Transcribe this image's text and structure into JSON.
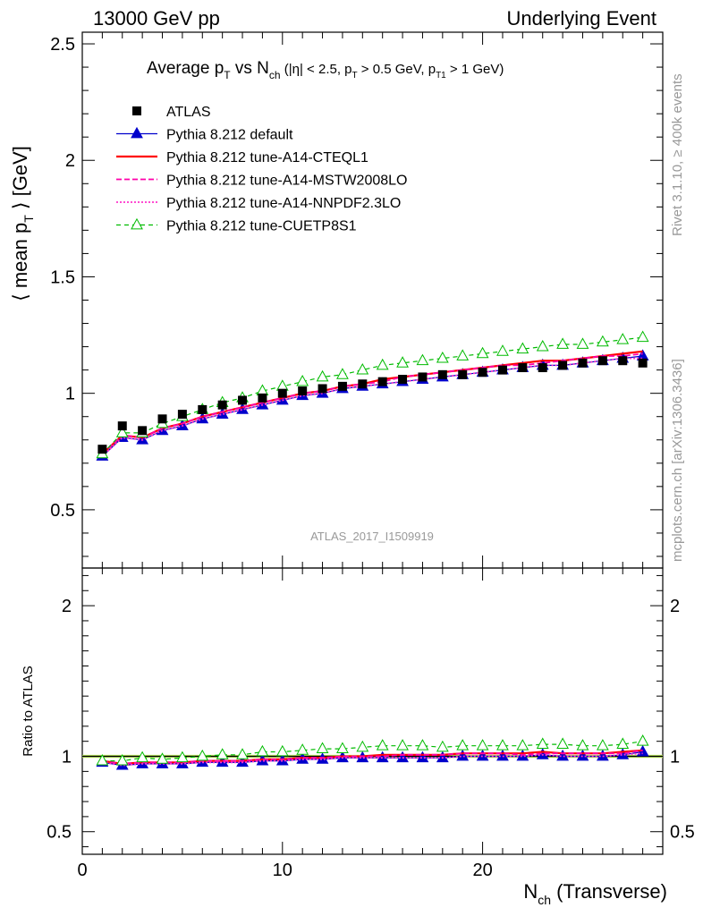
{
  "header": {
    "left": "13000 GeV pp",
    "right": "Underlying Event"
  },
  "side_labels": {
    "rivet": "Rivet 3.1.10, ≥ 400k events",
    "mcplots": "mcplots.cern.ch [arXiv:1306.3436]"
  },
  "analysis_id": "ATLAS_2017_I1509919",
  "colors": {
    "atlas": "#000000",
    "default": "#0000cc",
    "cteql1": "#ff0000",
    "mstw": "#ff00aa",
    "nnpdf": "#ff33cc",
    "cuetp8s1": "#00bb00",
    "ratio_band": "#ccff66"
  },
  "chart_data": [
    {
      "type": "line",
      "panel": "main",
      "title": {
        "main": "Average p",
        "main_sub": "T",
        "vs": " vs N",
        "vs_sub": "ch",
        "cond1": " (|η| < 2.5, p",
        "cond1_sub": "T",
        "cond2": " > 0.5 GeV, p",
        "cond2_sub": "T1",
        "cond3": " > 1 GeV)"
      },
      "ylabel": {
        "pre": "⟨ mean p",
        "sub": "T",
        "post": " ⟩ [GeV]"
      },
      "xlim": [
        0,
        29
      ],
      "ylim": [
        0.25,
        2.55
      ],
      "yticks": [
        0.5,
        1,
        1.5,
        2,
        2.5
      ],
      "ytick_labels": [
        "0.5",
        "1",
        "1.5",
        "2",
        "2.5"
      ],
      "legend_position": "top-left",
      "x": [
        1,
        2,
        3,
        4,
        5,
        6,
        7,
        8,
        9,
        10,
        11,
        12,
        13,
        14,
        15,
        16,
        17,
        18,
        19,
        20,
        21,
        22,
        23,
        24,
        25,
        26,
        27,
        28
      ],
      "series": [
        {
          "name": "ATLAS",
          "key": "atlas",
          "style": "data",
          "values": [
            0.76,
            0.86,
            0.84,
            0.89,
            0.91,
            0.93,
            0.95,
            0.97,
            0.98,
            1.0,
            1.01,
            1.02,
            1.03,
            1.04,
            1.05,
            1.06,
            1.07,
            1.08,
            1.08,
            1.09,
            1.1,
            1.11,
            1.11,
            1.12,
            1.13,
            1.14,
            1.14,
            1.13
          ]
        },
        {
          "name": "Pythia 8.212 default",
          "key": "default",
          "style": "solid-triangle",
          "values": [
            0.73,
            0.81,
            0.8,
            0.84,
            0.86,
            0.89,
            0.91,
            0.93,
            0.95,
            0.97,
            0.99,
            1.0,
            1.02,
            1.03,
            1.04,
            1.05,
            1.06,
            1.07,
            1.08,
            1.09,
            1.1,
            1.11,
            1.12,
            1.12,
            1.13,
            1.14,
            1.15,
            1.16
          ]
        },
        {
          "name": "Pythia 8.212 tune-A14-CTEQL1",
          "key": "cteql1",
          "style": "solid",
          "values": [
            0.74,
            0.82,
            0.81,
            0.85,
            0.87,
            0.9,
            0.92,
            0.94,
            0.96,
            0.98,
            1.0,
            1.01,
            1.03,
            1.04,
            1.06,
            1.07,
            1.08,
            1.09,
            1.1,
            1.11,
            1.12,
            1.13,
            1.14,
            1.14,
            1.15,
            1.16,
            1.17,
            1.18
          ]
        },
        {
          "name": "Pythia 8.212 tune-A14-MSTW2008LO",
          "key": "mstw",
          "style": "dashed",
          "values": [
            0.74,
            0.82,
            0.81,
            0.85,
            0.87,
            0.9,
            0.92,
            0.94,
            0.96,
            0.98,
            1.0,
            1.01,
            1.03,
            1.04,
            1.05,
            1.07,
            1.08,
            1.09,
            1.1,
            1.11,
            1.12,
            1.12,
            1.13,
            1.14,
            1.15,
            1.16,
            1.16,
            1.17
          ]
        },
        {
          "name": "Pythia 8.212 tune-A14-NNPDF2.3LO",
          "key": "nnpdf",
          "style": "dotted",
          "values": [
            0.73,
            0.81,
            0.8,
            0.84,
            0.86,
            0.89,
            0.91,
            0.93,
            0.95,
            0.97,
            0.99,
            1.0,
            1.02,
            1.03,
            1.04,
            1.05,
            1.06,
            1.07,
            1.08,
            1.09,
            1.1,
            1.11,
            1.12,
            1.12,
            1.13,
            1.14,
            1.15,
            1.15
          ]
        },
        {
          "name": "Pythia 8.212 tune-CUETP8S1",
          "key": "cuetp8s1",
          "style": "dashed-open-triangle",
          "values": [
            0.74,
            0.83,
            0.83,
            0.87,
            0.9,
            0.93,
            0.96,
            0.98,
            1.01,
            1.03,
            1.05,
            1.07,
            1.08,
            1.1,
            1.12,
            1.13,
            1.14,
            1.15,
            1.16,
            1.17,
            1.18,
            1.19,
            1.2,
            1.21,
            1.21,
            1.22,
            1.23,
            1.24
          ]
        }
      ]
    },
    {
      "type": "line",
      "panel": "ratio",
      "ylabel": "Ratio to ATLAS",
      "xlabel": {
        "pre": "N",
        "sub": "ch",
        "post": " (Transverse)"
      },
      "xlim": [
        0,
        29
      ],
      "xticks": [
        0,
        10,
        20
      ],
      "xtick_labels": [
        "0",
        "10",
        "20"
      ],
      "ylim": [
        0.35,
        2.25
      ],
      "yticks": [
        0.5,
        1,
        2
      ],
      "ytick_labels": [
        "0.5",
        "1",
        "2"
      ],
      "x": [
        1,
        2,
        3,
        4,
        5,
        6,
        7,
        8,
        9,
        10,
        11,
        12,
        13,
        14,
        15,
        16,
        17,
        18,
        19,
        20,
        21,
        22,
        23,
        24,
        25,
        26,
        27,
        28
      ],
      "series": [
        {
          "name": "Pythia 8.212 default",
          "key": "default",
          "style": "solid-triangle",
          "values": [
            0.96,
            0.94,
            0.95,
            0.95,
            0.95,
            0.96,
            0.96,
            0.96,
            0.97,
            0.97,
            0.98,
            0.98,
            0.99,
            0.99,
            0.99,
            0.99,
            0.99,
            0.99,
            1.0,
            1.0,
            1.0,
            1.0,
            1.01,
            1.0,
            1.0,
            1.0,
            1.01,
            1.03
          ]
        },
        {
          "name": "Pythia 8.212 tune-A14-CTEQL1",
          "key": "cteql1",
          "style": "solid",
          "values": [
            0.97,
            0.95,
            0.96,
            0.96,
            0.96,
            0.97,
            0.97,
            0.97,
            0.98,
            0.98,
            0.99,
            0.99,
            1.0,
            1.0,
            1.01,
            1.01,
            1.01,
            1.01,
            1.02,
            1.02,
            1.02,
            1.02,
            1.03,
            1.02,
            1.02,
            1.02,
            1.03,
            1.04
          ]
        },
        {
          "name": "Pythia 8.212 tune-A14-MSTW2008LO",
          "key": "mstw",
          "style": "dashed",
          "values": [
            0.97,
            0.95,
            0.96,
            0.96,
            0.96,
            0.97,
            0.97,
            0.97,
            0.98,
            0.98,
            0.99,
            0.99,
            1.0,
            1.0,
            1.0,
            1.01,
            1.01,
            1.01,
            1.02,
            1.02,
            1.02,
            1.01,
            1.02,
            1.02,
            1.02,
            1.02,
            1.02,
            1.04
          ]
        },
        {
          "name": "Pythia 8.212 tune-A14-NNPDF2.3LO",
          "key": "nnpdf",
          "style": "dotted",
          "values": [
            0.96,
            0.94,
            0.95,
            0.95,
            0.95,
            0.96,
            0.96,
            0.96,
            0.97,
            0.97,
            0.98,
            0.98,
            0.99,
            0.99,
            0.99,
            0.99,
            0.99,
            0.99,
            1.0,
            1.0,
            1.0,
            1.0,
            1.01,
            1.0,
            1.0,
            1.0,
            1.01,
            1.02
          ]
        },
        {
          "name": "Pythia 8.212 tune-CUETP8S1",
          "key": "cuetp8s1",
          "style": "dashed-open-triangle",
          "values": [
            0.97,
            0.97,
            0.99,
            0.98,
            0.99,
            1.0,
            1.01,
            1.01,
            1.03,
            1.03,
            1.04,
            1.05,
            1.05,
            1.06,
            1.07,
            1.07,
            1.07,
            1.06,
            1.07,
            1.07,
            1.07,
            1.07,
            1.08,
            1.08,
            1.07,
            1.07,
            1.08,
            1.1
          ]
        }
      ]
    }
  ]
}
